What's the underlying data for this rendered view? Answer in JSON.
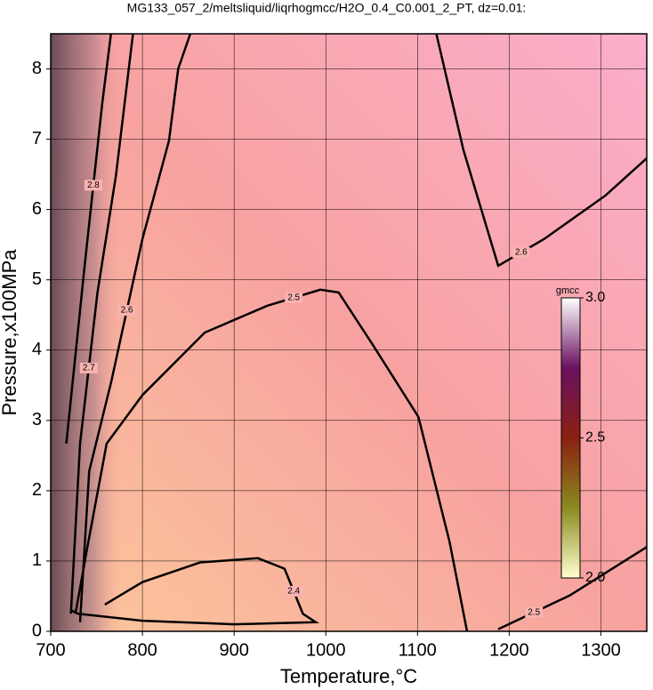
{
  "chart_data": {
    "type": "contour",
    "title": "MG133_057_2/meltsliquid/liqrhogmcc/H2O_0.4_C0.001_2_PT, dz=0.01:",
    "x_label": "Temperature,°C",
    "y_label": "Pressure,x100MPa",
    "xlim": [
      700,
      1350
    ],
    "ylim": [
      0,
      8.5
    ],
    "xticks": [
      700,
      800,
      900,
      1000,
      1100,
      1200,
      1300
    ],
    "yticks": [
      0,
      1,
      2,
      3,
      4,
      5,
      6,
      7,
      8
    ],
    "grid": true,
    "line_color": "#000000",
    "contours": [
      {
        "level": 2.4,
        "x": [
          759,
          800,
          863,
          926,
          955,
          975,
          989,
          900,
          800,
          730,
          722
        ],
        "y": [
          0.38,
          0.7,
          0.98,
          1.04,
          0.89,
          0.25,
          0.13,
          0.1,
          0.15,
          0.25,
          0.3
        ]
      },
      {
        "level": 2.5,
        "x": [
          727,
          740,
          761,
          800,
          868,
          936,
          994,
          1014,
          1052,
          1101,
          1135,
          1154
        ],
        "y": [
          0.25,
          1.2,
          2.67,
          3.36,
          4.25,
          4.63,
          4.86,
          4.82,
          4.06,
          3.05,
          1.27,
          0
        ]
      },
      {
        "level": 2.5,
        "x": [
          1188,
          1266,
          1350
        ],
        "y": [
          0.03,
          0.51,
          1.2
        ]
      },
      {
        "level": 2.6,
        "x": [
          732,
          742,
          766,
          800,
          829,
          839,
          853
        ],
        "y": [
          0.13,
          2.28,
          3.55,
          5.58,
          6.98,
          8,
          8.53
        ]
      },
      {
        "level": 2.6,
        "x": [
          1120,
          1150,
          1188,
          1238,
          1305,
          1350
        ],
        "y": [
          8.53,
          6.85,
          5.2,
          5.58,
          6.2,
          6.73
        ]
      },
      {
        "level": 2.7,
        "x": [
          722,
          732,
          751,
          771,
          790
        ],
        "y": [
          0.25,
          2.67,
          4.82,
          6.47,
          8.53
        ]
      },
      {
        "level": 2.8,
        "x": [
          717,
          737,
          756,
          766
        ],
        "y": [
          2.67,
          5.2,
          7.49,
          8.53
        ]
      }
    ],
    "colorbar": {
      "label": "gmcc",
      "lim": [
        2,
        3
      ],
      "ticks": [
        {
          "value": 3,
          "label": "3.0"
        },
        2.5,
        {
          "value": 2,
          "label": "2.0"
        }
      ]
    }
  }
}
